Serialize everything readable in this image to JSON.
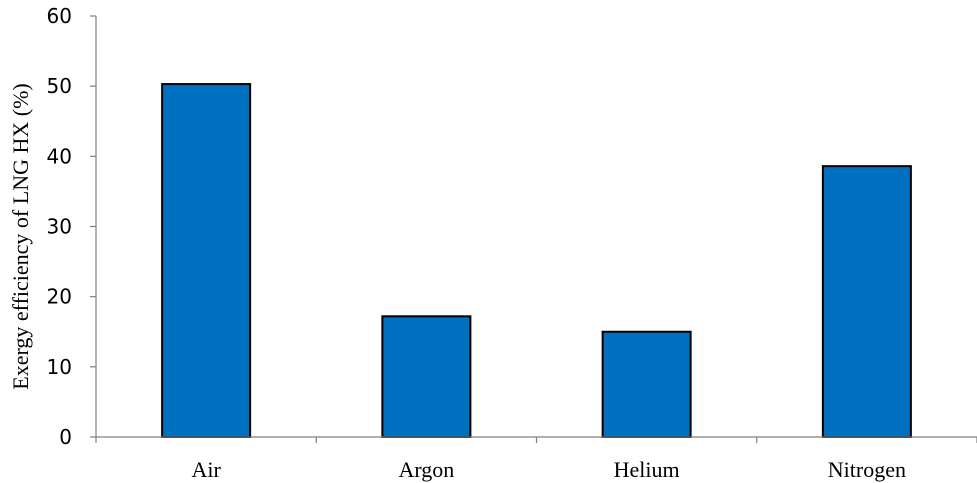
{
  "chart_data": {
    "type": "bar",
    "title": "",
    "xlabel": "",
    "ylabel": "Exergy efficiency of LNG HX (%)",
    "categories": [
      "Air",
      "Argon",
      "Helium",
      "Nitrogen"
    ],
    "values": [
      50.3,
      17.2,
      15.0,
      38.6
    ],
    "ylim": [
      0,
      60
    ],
    "yticks": [
      0,
      10,
      20,
      30,
      40,
      50,
      60
    ],
    "grid": false,
    "legend": "none",
    "bar_color": "#0070C0",
    "bar_edge_color": "#000000"
  }
}
